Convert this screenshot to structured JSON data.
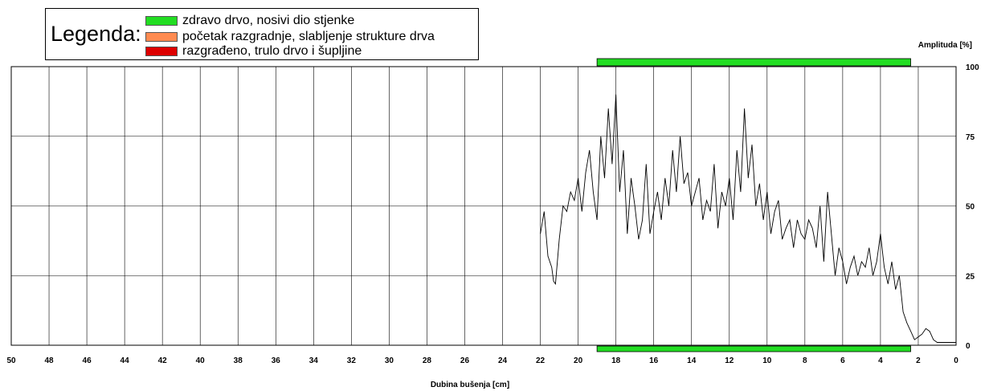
{
  "legend": {
    "title": "Legenda:",
    "items": [
      {
        "label": "zdravo drvo, nosivi dio stjenke",
        "color": "#22dd22"
      },
      {
        "label": "početak razgradnje, slabljenje strukture drva",
        "color": "#ff8a50"
      },
      {
        "label": "razgrađeno, trulo drvo i šupljine",
        "color": "#dd0000"
      }
    ]
  },
  "chart_data": {
    "type": "line",
    "title": "",
    "xlabel": "Dubina bušenja [cm]",
    "ylabel": "Amplituda [%]",
    "xlim": [
      50,
      0
    ],
    "ylim": [
      0,
      100
    ],
    "x_ticks": [
      50,
      48,
      46,
      44,
      42,
      40,
      38,
      36,
      34,
      32,
      30,
      28,
      26,
      24,
      22,
      20,
      18,
      16,
      14,
      12,
      10,
      8,
      6,
      4,
      2,
      0
    ],
    "y_ticks": [
      0,
      25,
      50,
      75,
      100
    ],
    "grid": true,
    "zones": [
      {
        "name": "zdravo drvo, nosivi dio stjenke",
        "from": 19.0,
        "to": 2.4,
        "color": "#22dd22"
      }
    ],
    "series": [
      {
        "x": [
          22.0,
          21.8,
          21.6,
          21.4,
          21.3,
          21.2,
          21.0,
          20.8,
          20.6,
          20.4,
          20.2,
          20.0,
          19.8,
          19.6,
          19.4,
          19.2,
          19.0,
          18.8,
          18.6,
          18.4,
          18.2,
          18.0,
          17.8,
          17.6,
          17.4,
          17.2,
          17.0,
          16.8,
          16.6,
          16.4,
          16.2,
          16.0,
          15.8,
          15.6,
          15.4,
          15.2,
          15.0,
          14.8,
          14.6,
          14.4,
          14.2,
          14.0,
          13.8,
          13.6,
          13.4,
          13.2,
          13.0,
          12.8,
          12.6,
          12.4,
          12.2,
          12.0,
          11.8,
          11.6,
          11.4,
          11.2,
          11.0,
          10.8,
          10.6,
          10.4,
          10.2,
          10.0,
          9.8,
          9.6,
          9.4,
          9.2,
          9.0,
          8.8,
          8.6,
          8.4,
          8.2,
          8.0,
          7.8,
          7.6,
          7.4,
          7.2,
          7.0,
          6.8,
          6.6,
          6.4,
          6.2,
          6.0,
          5.8,
          5.6,
          5.4,
          5.2,
          5.0,
          4.8,
          4.6,
          4.4,
          4.2,
          4.0,
          3.8,
          3.6,
          3.4,
          3.2,
          3.0,
          2.8,
          2.6,
          2.4,
          2.2,
          2.0,
          1.8,
          1.6,
          1.4,
          1.2,
          1.0,
          0.8,
          0.6,
          0.4,
          0.2,
          0.0
        ],
        "values": [
          40,
          48,
          32,
          28,
          23,
          22,
          38,
          50,
          48,
          55,
          52,
          60,
          48,
          62,
          70,
          55,
          45,
          75,
          60,
          85,
          65,
          90,
          55,
          70,
          40,
          60,
          50,
          38,
          45,
          65,
          40,
          48,
          55,
          45,
          60,
          50,
          70,
          55,
          75,
          58,
          62,
          50,
          55,
          60,
          45,
          52,
          48,
          65,
          42,
          55,
          50,
          60,
          45,
          70,
          55,
          85,
          60,
          72,
          50,
          58,
          45,
          55,
          40,
          48,
          52,
          38,
          42,
          45,
          35,
          45,
          40,
          38,
          45,
          42,
          35,
          50,
          30,
          55,
          40,
          25,
          35,
          30,
          22,
          28,
          32,
          25,
          30,
          28,
          35,
          25,
          30,
          40,
          28,
          22,
          30,
          20,
          25,
          12,
          8,
          5,
          2,
          3,
          4,
          6,
          5,
          2,
          1,
          1,
          1,
          1,
          1,
          1
        ]
      }
    ]
  }
}
